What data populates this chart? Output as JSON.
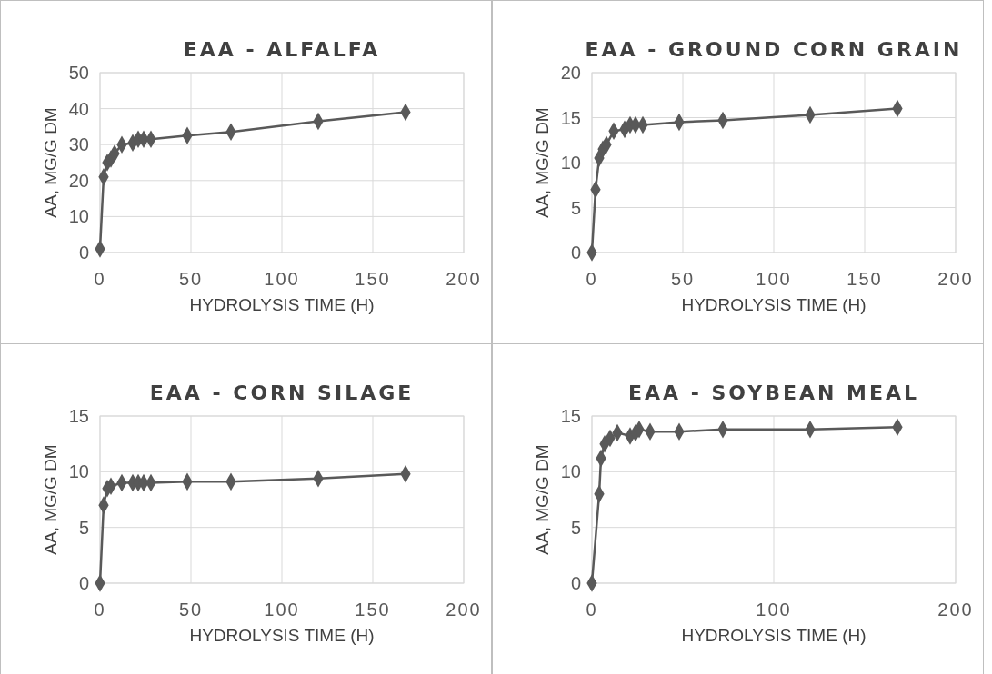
{
  "chart_data": [
    {
      "type": "line",
      "title": "EAA - ALFALFA",
      "xlabel": "HYDROLYSIS TIME (H)",
      "ylabel": "AA, MG/G DM",
      "x": [
        0,
        2,
        4,
        6,
        8,
        12,
        18,
        21,
        24,
        28,
        48,
        72,
        120,
        168
      ],
      "series": [
        {
          "color": "#595959",
          "values": [
            1,
            21,
            25,
            26,
            27.5,
            30,
            30.5,
            31.5,
            31.5,
            31.5,
            32.5,
            33.5,
            36.5,
            39
          ]
        }
      ],
      "xlim": [
        0,
        200
      ],
      "xticks": [
        0,
        50,
        100,
        150,
        200
      ],
      "ylim": [
        0,
        50
      ],
      "yticks": [
        0,
        10,
        20,
        30,
        40,
        50
      ],
      "grid": true,
      "marker": "diamond"
    },
    {
      "type": "line",
      "title": "EAA - GROUND CORN GRAIN",
      "xlabel": "HYDROLYSIS TIME (H)",
      "ylabel": "AA, MG/G DM",
      "x": [
        0,
        2,
        4,
        6,
        8,
        12,
        18,
        21,
        24,
        28,
        48,
        72,
        120,
        168
      ],
      "series": [
        {
          "color": "#595959",
          "values": [
            0,
            7,
            10.5,
            11.5,
            12,
            13.5,
            13.7,
            14.2,
            14.2,
            14.2,
            14.5,
            14.7,
            15.3,
            16
          ]
        }
      ],
      "xlim": [
        0,
        200
      ],
      "xticks": [
        0,
        50,
        100,
        150,
        200
      ],
      "ylim": [
        0,
        20
      ],
      "yticks": [
        0,
        5,
        10,
        15,
        20
      ],
      "grid": true,
      "marker": "diamond"
    },
    {
      "type": "line",
      "title": "EAA - CORN SILAGE",
      "xlabel": "HYDROLYSIS TIME (H)",
      "ylabel": "AA, MG/G DM",
      "x": [
        0,
        2,
        4,
        6,
        12,
        18,
        21,
        24,
        28,
        48,
        72,
        120,
        168
      ],
      "series": [
        {
          "color": "#595959",
          "values": [
            0,
            7,
            8.5,
            8.7,
            9,
            9,
            9,
            9,
            9,
            9.1,
            9.1,
            9.4,
            9.8
          ]
        }
      ],
      "xlim": [
        0,
        200
      ],
      "xticks": [
        0,
        50,
        100,
        150,
        200
      ],
      "ylim": [
        0,
        15
      ],
      "yticks": [
        0,
        5,
        10,
        15
      ],
      "grid": true,
      "marker": "diamond"
    },
    {
      "type": "line",
      "title": "EAA - SOYBEAN MEAL",
      "xlabel": "HYDROLYSIS TIME (H)",
      "ylabel": "AA, MG/G DM",
      "x": [
        0,
        4,
        5,
        7,
        10,
        14,
        21,
        24,
        26,
        32,
        48,
        72,
        120,
        168
      ],
      "series": [
        {
          "color": "#595959",
          "values": [
            0,
            8,
            11.2,
            12.5,
            13,
            13.5,
            13.2,
            13.5,
            13.8,
            13.6,
            13.6,
            13.8,
            13.8,
            14
          ]
        }
      ],
      "xlim": [
        0,
        200
      ],
      "xticks": [
        0,
        100,
        200
      ],
      "ylim": [
        0,
        15
      ],
      "yticks": [
        0,
        5,
        10,
        15
      ],
      "grid": true,
      "marker": "diamond"
    }
  ]
}
